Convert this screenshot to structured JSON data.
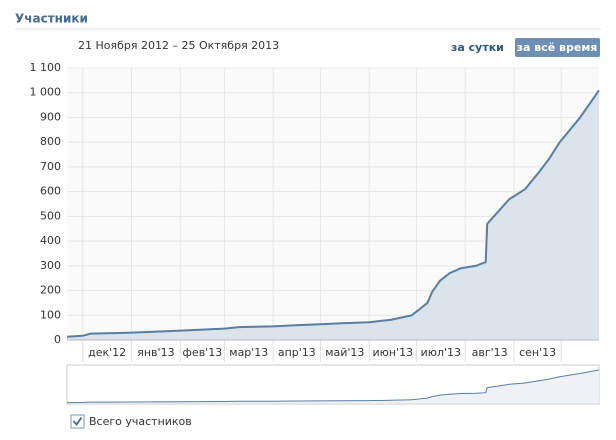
{
  "chart_data": {
    "type": "line",
    "title": "Участники",
    "subtitle": "21 Ноября 2012 – 25 Октября 2013",
    "buttons": [
      "за сутки",
      "за всё время"
    ],
    "x": [
      "2012-11-21",
      "2012-12-01",
      "2012-12-06",
      "2012-12-20",
      "2013-01-01",
      "2013-01-15",
      "2013-02-01",
      "2013-02-15",
      "2013-03-01",
      "2013-03-10",
      "2013-04-01",
      "2013-04-15",
      "2013-05-01",
      "2013-05-15",
      "2013-06-01",
      "2013-06-15",
      "2013-06-28",
      "2013-07-03",
      "2013-07-08",
      "2013-07-11",
      "2013-07-16",
      "2013-07-22",
      "2013-07-29",
      "2013-08-08",
      "2013-08-14",
      "2013-08-15",
      "2013-08-20",
      "2013-08-29",
      "2013-09-08",
      "2013-09-17",
      "2013-09-23",
      "2013-09-30",
      "2013-10-13",
      "2013-10-25"
    ],
    "series": [
      {
        "name": "Всего участников",
        "color": "#597da3",
        "values": [
          13,
          17,
          26,
          28,
          30,
          33,
          38,
          42,
          46,
          52,
          55,
          60,
          64,
          68,
          72,
          82,
          100,
          125,
          150,
          195,
          240,
          270,
          290,
          300,
          315,
          470,
          505,
          570,
          610,
          680,
          730,
          800,
          900,
          1010
        ]
      }
    ],
    "xlim": [
      "2012-11-21",
      "2013-10-25"
    ],
    "xticks": [
      {
        "value": "2012-12-01",
        "label": "дек'12"
      },
      {
        "value": "2013-01-01",
        "label": "янв'13"
      },
      {
        "value": "2013-02-01",
        "label": "фев'13"
      },
      {
        "value": "2013-03-01",
        "label": "мар'13"
      },
      {
        "value": "2013-04-01",
        "label": "апр'13"
      },
      {
        "value": "2013-05-01",
        "label": "май'13"
      },
      {
        "value": "2013-06-01",
        "label": "июн'13"
      },
      {
        "value": "2013-07-01",
        "label": "июл'13"
      },
      {
        "value": "2013-08-01",
        "label": "авг'13"
      },
      {
        "value": "2013-09-01",
        "label": "сен'13"
      },
      {
        "value": "2013-10-01",
        "label": null
      }
    ],
    "ylim": [
      0,
      1100
    ],
    "yticks": [
      0,
      100,
      200,
      300,
      400,
      500,
      600,
      700,
      800,
      900,
      {
        "value": 1000,
        "label": "1 000"
      },
      {
        "value": 1100,
        "label": "1 100"
      }
    ],
    "grid": true
  }
}
